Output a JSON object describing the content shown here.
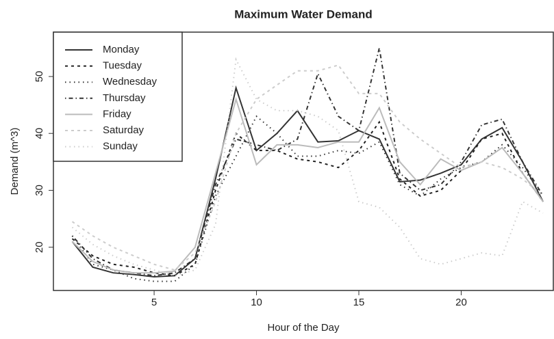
{
  "chart_data": {
    "type": "line",
    "title": "Maximum Water Demand",
    "x_label": "Hour of the Day",
    "y_label": "Demand (m^3)",
    "x": [
      1,
      2,
      3,
      4,
      5,
      6,
      7,
      8,
      9,
      10,
      11,
      12,
      13,
      14,
      15,
      16,
      17,
      18,
      19,
      20,
      21,
      22,
      23,
      24
    ],
    "xlim": [
      0.08,
      24.5
    ],
    "ylim": [
      12.4,
      57.8
    ],
    "xticks": [
      5,
      10,
      15,
      20
    ],
    "yticks": [
      20,
      30,
      40,
      50
    ],
    "legend": "top-left",
    "series": [
      {
        "name": "Monday",
        "color": "#333333",
        "dash": "none",
        "values": [
          21,
          16.5,
          15.5,
          15.2,
          14.8,
          15,
          18,
          32,
          48,
          37,
          40,
          44,
          38.5,
          38.7,
          40.5,
          39,
          31.5,
          31.8,
          33,
          34.5,
          39,
          41,
          35,
          28
        ]
      },
      {
        "name": "Tuesday",
        "color": "#222222",
        "dash": "4 5",
        "values": [
          21.5,
          18.5,
          17,
          16.5,
          15.5,
          15,
          17,
          30,
          40,
          37,
          37,
          35.5,
          35,
          34,
          37,
          42,
          32,
          29,
          30,
          33.5,
          39,
          40,
          33,
          28
        ]
      },
      {
        "name": "Wednesday",
        "color": "#333333",
        "dash": "1.5 5",
        "values": [
          22,
          17,
          16,
          14.5,
          14,
          14,
          17,
          29,
          36,
          43,
          40,
          36,
          36,
          37,
          36.5,
          38.5,
          31,
          29,
          32,
          34,
          35,
          38,
          34,
          29
        ]
      },
      {
        "name": "Thursday",
        "color": "#333333",
        "dash": "1.5 4 6 4",
        "values": [
          22,
          18,
          16,
          15.5,
          15,
          15.5,
          18,
          31,
          39,
          38,
          37,
          39,
          50.5,
          43,
          40.5,
          55,
          33,
          30,
          31,
          35,
          41.5,
          42.5,
          35,
          29
        ]
      },
      {
        "name": "Friday",
        "color": "#bbbbbb",
        "dash": "none",
        "values": [
          21,
          17.5,
          16,
          15.5,
          15.5,
          15.8,
          20,
          33,
          46,
          34.5,
          38,
          38,
          37.5,
          38.5,
          38.5,
          44.5,
          35,
          31,
          35.5,
          33.5,
          35,
          37.5,
          33,
          28
        ]
      },
      {
        "name": "Saturday",
        "color": "#cccccc",
        "dash": "4 5",
        "values": [
          24.5,
          22,
          20,
          18.5,
          17,
          16,
          19,
          28,
          40,
          46,
          48.5,
          51,
          51,
          52,
          47,
          47,
          42,
          39,
          36.5,
          34,
          35,
          34,
          32,
          29
        ]
      },
      {
        "name": "Sunday",
        "color": "#cccccc",
        "dash": "1.5 5",
        "values": [
          23.5,
          20.5,
          18.5,
          17,
          16,
          15,
          16,
          24,
          53,
          46,
          44,
          44,
          43,
          40.5,
          28,
          27,
          23.5,
          18,
          17,
          18,
          19,
          18.5,
          28,
          26
        ]
      }
    ]
  }
}
